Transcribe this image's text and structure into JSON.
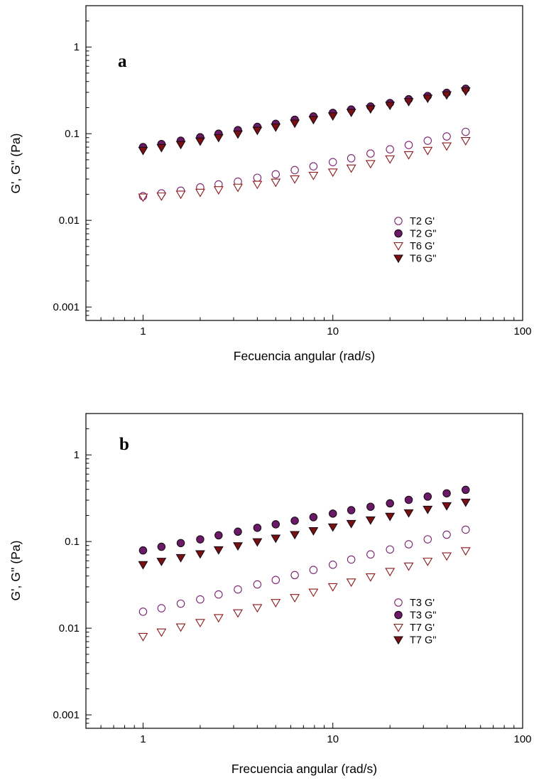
{
  "chart_data": [
    {
      "type": "scatter",
      "panel_label": "a",
      "xlabel": "Fecuencia angular (rad/s)",
      "ylabel": "G', G'' (Pa)",
      "xscale": "log",
      "yscale": "log",
      "xlim": [
        0.5,
        100
      ],
      "ylim": [
        0.0007,
        3
      ],
      "xticks": [
        {
          "value": 1,
          "label": "1"
        },
        {
          "value": 10,
          "label": "10"
        },
        {
          "value": 100,
          "label": "100"
        }
      ],
      "yticks": [
        {
          "value": 0.001,
          "label": "0.001"
        },
        {
          "value": 0.01,
          "label": "0.01"
        },
        {
          "value": 0.1,
          "label": "0.1"
        },
        {
          "value": 1,
          "label": "1"
        }
      ],
      "grid": false,
      "legend_position": "right",
      "x": [
        1,
        1.25,
        1.58,
        2,
        2.5,
        3.16,
        4,
        5,
        6.3,
        7.9,
        10,
        12.5,
        15.8,
        20,
        25.1,
        31.6,
        39.8,
        50.1
      ],
      "series": [
        {
          "name": "T2  G'",
          "marker": "circle-open",
          "color": "#7a1e6e",
          "values": [
            0.019,
            0.0205,
            0.022,
            0.024,
            0.026,
            0.028,
            0.031,
            0.034,
            0.038,
            0.042,
            0.047,
            0.052,
            0.059,
            0.066,
            0.074,
            0.083,
            0.093,
            0.105
          ]
        },
        {
          "name": "T2  G\"",
          "marker": "circle-filled",
          "color": "#6a1a66",
          "values": [
            0.07,
            0.076,
            0.083,
            0.091,
            0.1,
            0.11,
            0.12,
            0.13,
            0.145,
            0.158,
            0.174,
            0.19,
            0.206,
            0.226,
            0.25,
            0.272,
            0.296,
            0.33
          ]
        },
        {
          "name": "T6  G'",
          "marker": "triangle-open",
          "color": "#8b1a1a",
          "values": [
            0.0185,
            0.019,
            0.02,
            0.021,
            0.0225,
            0.024,
            0.026,
            0.0275,
            0.03,
            0.033,
            0.036,
            0.04,
            0.045,
            0.051,
            0.057,
            0.064,
            0.072,
            0.083
          ]
        },
        {
          "name": "T6  G\"",
          "marker": "triangle-filled",
          "color": "#7a1010",
          "values": [
            0.064,
            0.069,
            0.075,
            0.082,
            0.09,
            0.099,
            0.109,
            0.119,
            0.132,
            0.145,
            0.16,
            0.176,
            0.193,
            0.212,
            0.234,
            0.256,
            0.28,
            0.31
          ]
        }
      ]
    },
    {
      "type": "scatter",
      "panel_label": "b",
      "xlabel": "Frecuencia angular (rad/s)",
      "ylabel": "G', G'' (Pa)",
      "xscale": "log",
      "yscale": "log",
      "xlim": [
        0.5,
        100
      ],
      "ylim": [
        0.0007,
        3
      ],
      "xticks": [
        {
          "value": 1,
          "label": "1"
        },
        {
          "value": 10,
          "label": "10"
        },
        {
          "value": 100,
          "label": "100"
        }
      ],
      "yticks": [
        {
          "value": 0.001,
          "label": "0.001"
        },
        {
          "value": 0.01,
          "label": "0.01"
        },
        {
          "value": 0.1,
          "label": "0.1"
        },
        {
          "value": 1,
          "label": "1"
        }
      ],
      "grid": false,
      "legend_position": "right",
      "x": [
        1,
        1.25,
        1.58,
        2,
        2.5,
        3.16,
        4,
        5,
        6.3,
        7.9,
        10,
        12.5,
        15.8,
        20,
        25.1,
        31.6,
        39.8,
        50.1
      ],
      "series": [
        {
          "name": "T3  G'",
          "marker": "circle-open",
          "color": "#7a1e6e",
          "values": [
            0.0155,
            0.017,
            0.0192,
            0.0215,
            0.0245,
            0.028,
            0.032,
            0.036,
            0.041,
            0.047,
            0.054,
            0.062,
            0.071,
            0.081,
            0.093,
            0.106,
            0.12,
            0.137
          ]
        },
        {
          "name": "T3  G\"",
          "marker": "circle-filled",
          "color": "#6a1a66",
          "values": [
            0.079,
            0.087,
            0.096,
            0.106,
            0.118,
            0.13,
            0.144,
            0.158,
            0.174,
            0.191,
            0.21,
            0.23,
            0.252,
            0.276,
            0.303,
            0.33,
            0.36,
            0.395
          ]
        },
        {
          "name": "T7  G'",
          "marker": "triangle-open",
          "color": "#8b1a1a",
          "values": [
            0.008,
            0.009,
            0.0103,
            0.0116,
            0.0132,
            0.015,
            0.0172,
            0.0197,
            0.0225,
            0.026,
            0.03,
            0.034,
            0.039,
            0.045,
            0.052,
            0.059,
            0.068,
            0.078
          ]
        },
        {
          "name": "T7  G\"",
          "marker": "triangle-filled",
          "color": "#7a1010",
          "values": [
            0.054,
            0.059,
            0.065,
            0.072,
            0.08,
            0.089,
            0.099,
            0.109,
            0.12,
            0.133,
            0.147,
            0.161,
            0.177,
            0.195,
            0.214,
            0.235,
            0.258,
            0.284
          ]
        }
      ]
    }
  ]
}
